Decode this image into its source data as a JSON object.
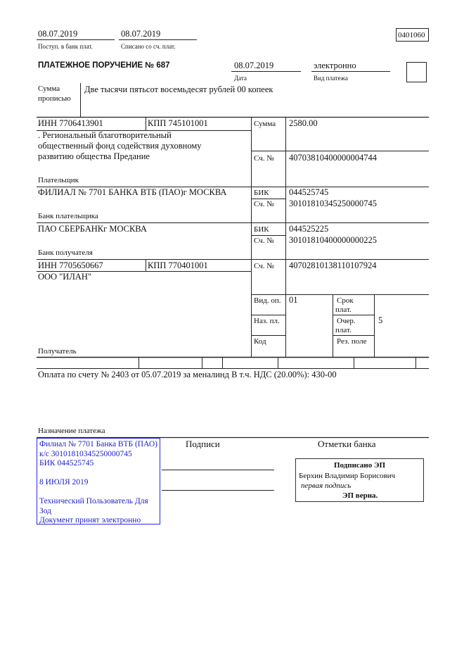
{
  "header": {
    "received_date": "08.07.2019",
    "received_label": "Поступ. в банк плат.",
    "debited_date": "08.07.2019",
    "debited_label": "Списано со сч. плат.",
    "form_code": "0401060"
  },
  "order": {
    "title": "ПЛАТЕЖНОЕ ПОРУЧЕНИЕ № 687",
    "date": "08.07.2019",
    "date_label": "Дата",
    "payment_type": "электронно",
    "payment_type_label": "Вид платежа"
  },
  "amount_words": {
    "label_1": "Сумма",
    "label_2": "прописью",
    "value": "Две тысячи пятьсот восемьдесят рублей 00 копеек"
  },
  "payer": {
    "inn": "ИНН 7706413901",
    "kpp": "КПП 745101001",
    "name_lines": [
      ". Региональный благотворительный",
      "общественный фонд содействия духовному",
      "развитию общества Предание"
    ],
    "label": "Плательщик",
    "sum_label": "Сумма",
    "sum": "2580.00",
    "account_label": "Сч. №",
    "account": "40703810400000004744"
  },
  "payer_bank": {
    "name": "ФИЛИАЛ № 7701 БАНКА ВТБ (ПАО)г МОСКВА",
    "label": "Банк плательщика",
    "bik_label": "БИК",
    "bik": "044525745",
    "account_label": "Сч. №",
    "account": "30101810345250000745"
  },
  "recipient_bank": {
    "name": "ПАО СБЕРБАНКг МОСКВА",
    "label": "Банк получателя",
    "bik_label": "БИК",
    "bik": "044525225",
    "account_label": "Сч. №",
    "account": "30101810400000000225"
  },
  "recipient": {
    "inn": "ИНН 7705650667",
    "kpp": "КПП 770401001",
    "name": "ООО \"ИЛАН\"",
    "label": "Получатель",
    "account_label": "Сч. №",
    "account": "40702810138110107924"
  },
  "codes": {
    "op_type_label": "Вид. оп.",
    "op_type": "01",
    "purpose_type_label": "Наз. пл.",
    "code_label": "Код",
    "due_label_1": "Срок",
    "due_label_2": "плат.",
    "priority_label_1": "Очер.",
    "priority_label_2": "плат.",
    "priority": "5",
    "reserve_label": "Рез. поле"
  },
  "purpose": {
    "text": "Оплата по счету № 2403 от 05.07.2019 за меналинд В т.ч. НДС (20.00%): 430-00",
    "label": "Назначение платежа"
  },
  "bank_stamp": {
    "lines": [
      "Филиал № 7701 Банка ВТБ (ПАО)",
      "к/с 30101810345250000745",
      "БИК 044525745",
      "",
      "8 ИЮЛЯ 2019",
      "",
      "Технический Пользователь Для",
      "Зод",
      "Документ принят электронно"
    ],
    "color": "#2020c8"
  },
  "signatures": {
    "label": "Подписи",
    "bank_marks_label": "Отметки банка"
  },
  "e_signature": {
    "title": "Подписано ЭП",
    "signer": "Берхин Владимир Борисович",
    "role": "первая подпись",
    "status": "ЭП верна."
  }
}
